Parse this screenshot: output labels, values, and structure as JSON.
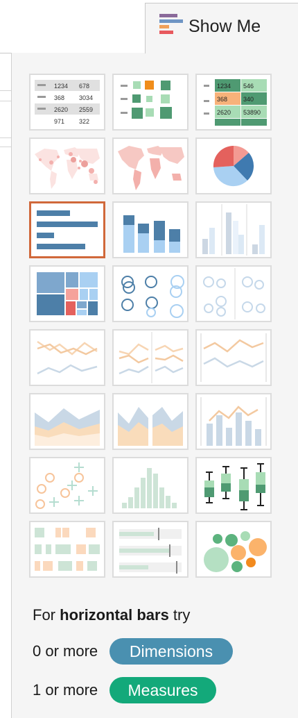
{
  "tab": {
    "label": "Show Me"
  },
  "chart_types": [
    {
      "name": "text-table-icon",
      "selected": false
    },
    {
      "name": "heat-map-icon",
      "selected": false
    },
    {
      "name": "highlight-table-icon",
      "selected": false
    },
    {
      "name": "symbol-map-icon",
      "selected": false
    },
    {
      "name": "filled-map-icon",
      "selected": false
    },
    {
      "name": "pie-chart-icon",
      "selected": false
    },
    {
      "name": "horizontal-bars-icon",
      "selected": true
    },
    {
      "name": "stacked-bars-icon",
      "selected": false
    },
    {
      "name": "side-by-side-bars-icon",
      "selected": false
    },
    {
      "name": "treemap-icon",
      "selected": false
    },
    {
      "name": "circle-views-icon",
      "selected": false
    },
    {
      "name": "side-by-side-circles-icon",
      "selected": false
    },
    {
      "name": "continuous-lines-icon",
      "selected": false
    },
    {
      "name": "discrete-lines-icon",
      "selected": false
    },
    {
      "name": "dual-lines-icon",
      "selected": false
    },
    {
      "name": "area-continuous-icon",
      "selected": false
    },
    {
      "name": "area-discrete-icon",
      "selected": false
    },
    {
      "name": "dual-combination-icon",
      "selected": false
    },
    {
      "name": "scatter-plot-icon",
      "selected": false
    },
    {
      "name": "histogram-icon",
      "selected": false
    },
    {
      "name": "box-whisker-icon",
      "selected": false
    },
    {
      "name": "gantt-chart-icon",
      "selected": false
    },
    {
      "name": "bullet-graph-icon",
      "selected": false
    },
    {
      "name": "packed-bubbles-icon",
      "selected": false
    }
  ],
  "text_table": {
    "values": [
      "1234",
      "678",
      "368",
      "3034",
      "2620",
      "2559",
      "971",
      "322"
    ]
  },
  "highlight_table": {
    "values": [
      "1234",
      "546",
      "368",
      "340",
      "2620",
      "53890"
    ]
  },
  "hint": {
    "prefix": "For ",
    "chart_type": "horizontal bars",
    "suffix": " try"
  },
  "requirements": [
    {
      "prefix": "0 or more",
      "label": "Dimensions",
      "color": "#4a90b0"
    },
    {
      "prefix": "1 or more",
      "label": "Measures",
      "color": "#13a97a"
    }
  ]
}
